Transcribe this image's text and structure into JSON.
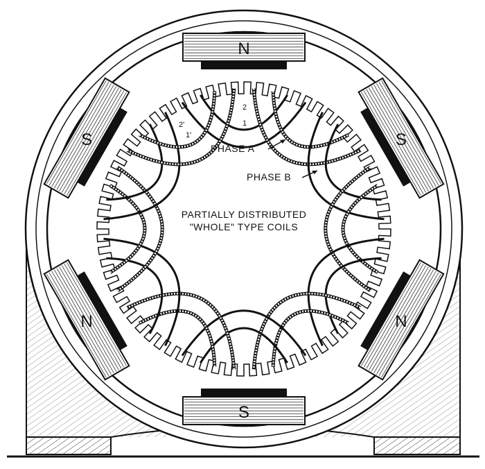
{
  "labels": {
    "phase_a": "PHASE A",
    "phase_b": "PHASE B",
    "center_line1": "PARTIALLY DISTRIBUTED",
    "center_line2": "\"WHOLE\" TYPE COILS",
    "coil_1": "1",
    "coil_2": "2",
    "coil_1p": "1'",
    "coil_2p": "2'"
  },
  "poles": [
    {
      "name": "top",
      "label": "N"
    },
    {
      "name": "upper-right",
      "label": "S"
    },
    {
      "name": "lower-right",
      "label": "N"
    },
    {
      "name": "bottom",
      "label": "S"
    },
    {
      "name": "lower-left",
      "label": "N"
    },
    {
      "name": "upper-left",
      "label": "S"
    }
  ],
  "colors": {
    "ink": "#111111",
    "paper": "#ffffff"
  }
}
